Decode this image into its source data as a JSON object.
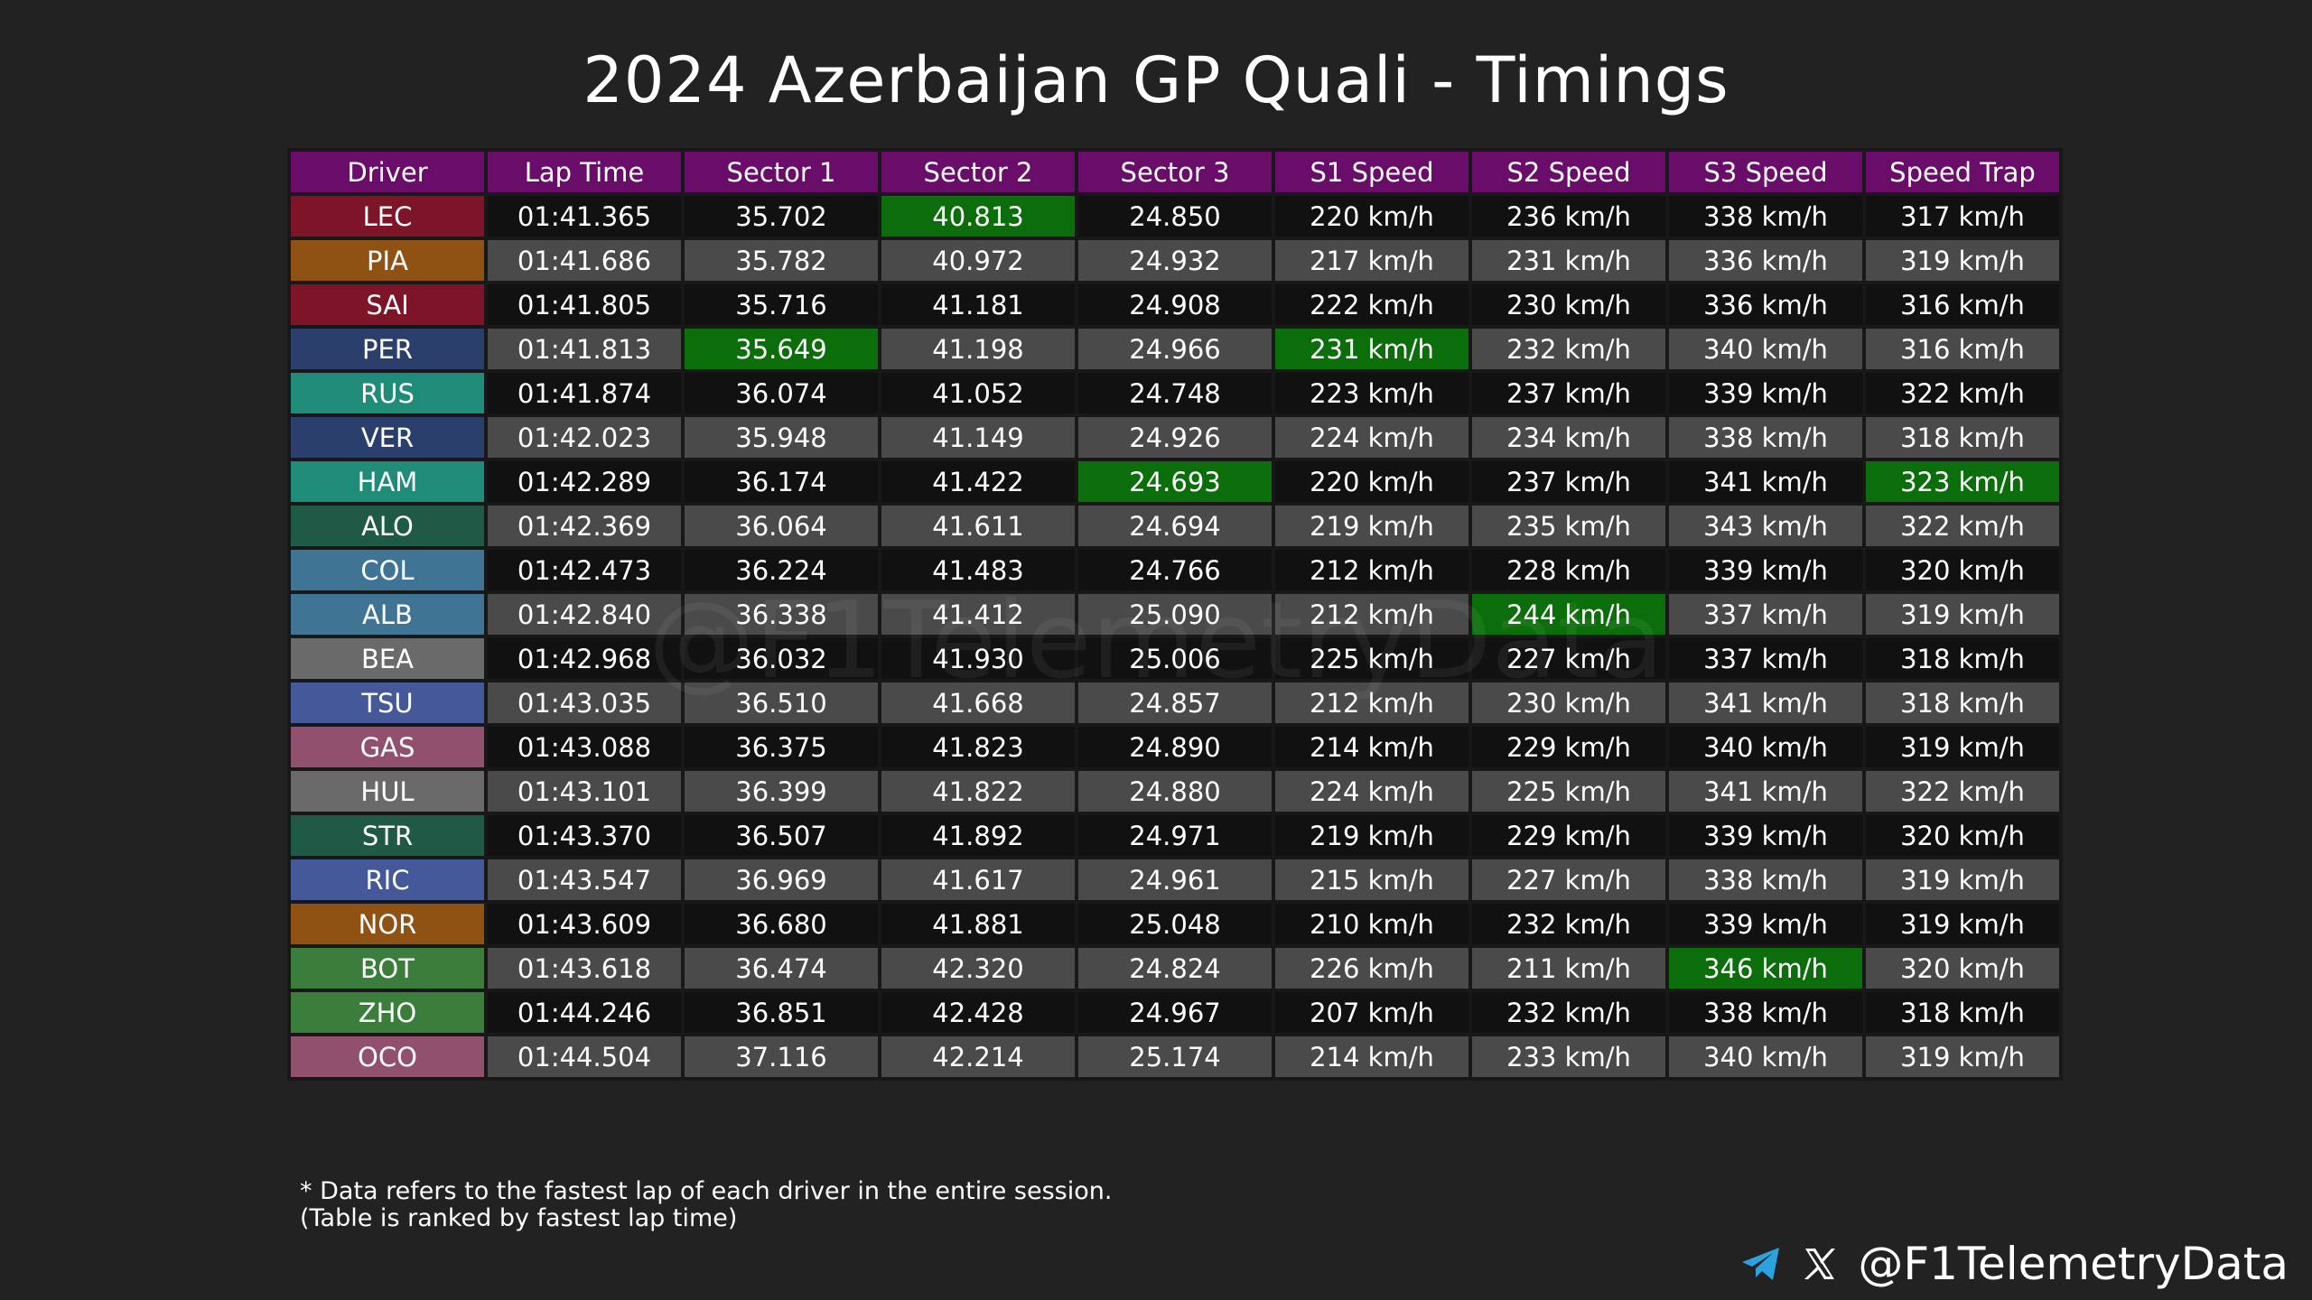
{
  "title": "2024 Azerbaijan GP Quali - Timings",
  "watermark": "@F1TelemetryData",
  "footnote": {
    "line1": "* Data refers to the fastest lap of each driver in the entire session.",
    "line2": "(Table is ranked by fastest lap time)"
  },
  "handle": "@F1TelemetryData",
  "icons": [
    "telegram-icon",
    "x-icon"
  ],
  "colors": {
    "header": "#6a0d6a",
    "fastest": "#0b6e0b",
    "row_dark": "#111111",
    "row_light": "#4a4a4a"
  },
  "chart_data": {
    "type": "table",
    "title": "2024 Azerbaijan GP Quali - Timings",
    "columns": [
      "Driver",
      "Lap Time",
      "Sector 1",
      "Sector 2",
      "Sector 3",
      "S1 Speed",
      "S2 Speed",
      "S3 Speed",
      "Speed Trap"
    ],
    "rows": [
      {
        "driver": "LEC",
        "color": "#7d1427",
        "cells": [
          "01:41.365",
          "35.702",
          "40.813",
          "24.850",
          "220 km/h",
          "236 km/h",
          "338 km/h",
          "317 km/h"
        ],
        "fastest": [
          2
        ]
      },
      {
        "driver": "PIA",
        "color": "#8f5213",
        "cells": [
          "01:41.686",
          "35.782",
          "40.972",
          "24.932",
          "217 km/h",
          "231 km/h",
          "336 km/h",
          "319 km/h"
        ],
        "fastest": []
      },
      {
        "driver": "SAI",
        "color": "#7d1427",
        "cells": [
          "01:41.805",
          "35.716",
          "41.181",
          "24.908",
          "222 km/h",
          "230 km/h",
          "336 km/h",
          "316 km/h"
        ],
        "fastest": []
      },
      {
        "driver": "PER",
        "color": "#2a3f6b",
        "cells": [
          "01:41.813",
          "35.649",
          "41.198",
          "24.966",
          "231 km/h",
          "232 km/h",
          "340 km/h",
          "316 km/h"
        ],
        "fastest": [
          1,
          4
        ]
      },
      {
        "driver": "RUS",
        "color": "#1f8c7a",
        "cells": [
          "01:41.874",
          "36.074",
          "41.052",
          "24.748",
          "223 km/h",
          "237 km/h",
          "339 km/h",
          "322 km/h"
        ],
        "fastest": []
      },
      {
        "driver": "VER",
        "color": "#2a3f6b",
        "cells": [
          "01:42.023",
          "35.948",
          "41.149",
          "24.926",
          "224 km/h",
          "234 km/h",
          "338 km/h",
          "318 km/h"
        ],
        "fastest": []
      },
      {
        "driver": "HAM",
        "color": "#1f8c7a",
        "cells": [
          "01:42.289",
          "36.174",
          "41.422",
          "24.693",
          "220 km/h",
          "237 km/h",
          "341 km/h",
          "323 km/h"
        ],
        "fastest": [
          3,
          7
        ]
      },
      {
        "driver": "ALO",
        "color": "#1e5a45",
        "cells": [
          "01:42.369",
          "36.064",
          "41.611",
          "24.694",
          "219 km/h",
          "235 km/h",
          "343 km/h",
          "322 km/h"
        ],
        "fastest": []
      },
      {
        "driver": "COL",
        "color": "#3f7494",
        "cells": [
          "01:42.473",
          "36.224",
          "41.483",
          "24.766",
          "212 km/h",
          "228 km/h",
          "339 km/h",
          "320 km/h"
        ],
        "fastest": []
      },
      {
        "driver": "ALB",
        "color": "#3f7494",
        "cells": [
          "01:42.840",
          "36.338",
          "41.412",
          "25.090",
          "212 km/h",
          "244 km/h",
          "337 km/h",
          "319 km/h"
        ],
        "fastest": [
          5
        ]
      },
      {
        "driver": "BEA",
        "color": "#6a6a6a",
        "cells": [
          "01:42.968",
          "36.032",
          "41.930",
          "25.006",
          "225 km/h",
          "227 km/h",
          "337 km/h",
          "318 km/h"
        ],
        "fastest": []
      },
      {
        "driver": "TSU",
        "color": "#44589a",
        "cells": [
          "01:43.035",
          "36.510",
          "41.668",
          "24.857",
          "212 km/h",
          "230 km/h",
          "341 km/h",
          "318 km/h"
        ],
        "fastest": []
      },
      {
        "driver": "GAS",
        "color": "#91506e",
        "cells": [
          "01:43.088",
          "36.375",
          "41.823",
          "24.890",
          "214 km/h",
          "229 km/h",
          "340 km/h",
          "319 km/h"
        ],
        "fastest": []
      },
      {
        "driver": "HUL",
        "color": "#6a6a6a",
        "cells": [
          "01:43.101",
          "36.399",
          "41.822",
          "24.880",
          "224 km/h",
          "225 km/h",
          "341 km/h",
          "322 km/h"
        ],
        "fastest": []
      },
      {
        "driver": "STR",
        "color": "#1e5a45",
        "cells": [
          "01:43.370",
          "36.507",
          "41.892",
          "24.971",
          "219 km/h",
          "229 km/h",
          "339 km/h",
          "320 km/h"
        ],
        "fastest": []
      },
      {
        "driver": "RIC",
        "color": "#44589a",
        "cells": [
          "01:43.547",
          "36.969",
          "41.617",
          "24.961",
          "215 km/h",
          "227 km/h",
          "338 km/h",
          "319 km/h"
        ],
        "fastest": []
      },
      {
        "driver": "NOR",
        "color": "#8f5213",
        "cells": [
          "01:43.609",
          "36.680",
          "41.881",
          "25.048",
          "210 km/h",
          "232 km/h",
          "339 km/h",
          "319 km/h"
        ],
        "fastest": []
      },
      {
        "driver": "BOT",
        "color": "#3b7d3b",
        "cells": [
          "01:43.618",
          "36.474",
          "42.320",
          "24.824",
          "226 km/h",
          "211 km/h",
          "346 km/h",
          "320 km/h"
        ],
        "fastest": [
          6
        ]
      },
      {
        "driver": "ZHO",
        "color": "#3b7d3b",
        "cells": [
          "01:44.246",
          "36.851",
          "42.428",
          "24.967",
          "207 km/h",
          "232 km/h",
          "338 km/h",
          "318 km/h"
        ],
        "fastest": []
      },
      {
        "driver": "OCO",
        "color": "#91506e",
        "cells": [
          "01:44.504",
          "37.116",
          "42.214",
          "25.174",
          "214 km/h",
          "233 km/h",
          "340 km/h",
          "319 km/h"
        ],
        "fastest": []
      }
    ]
  }
}
